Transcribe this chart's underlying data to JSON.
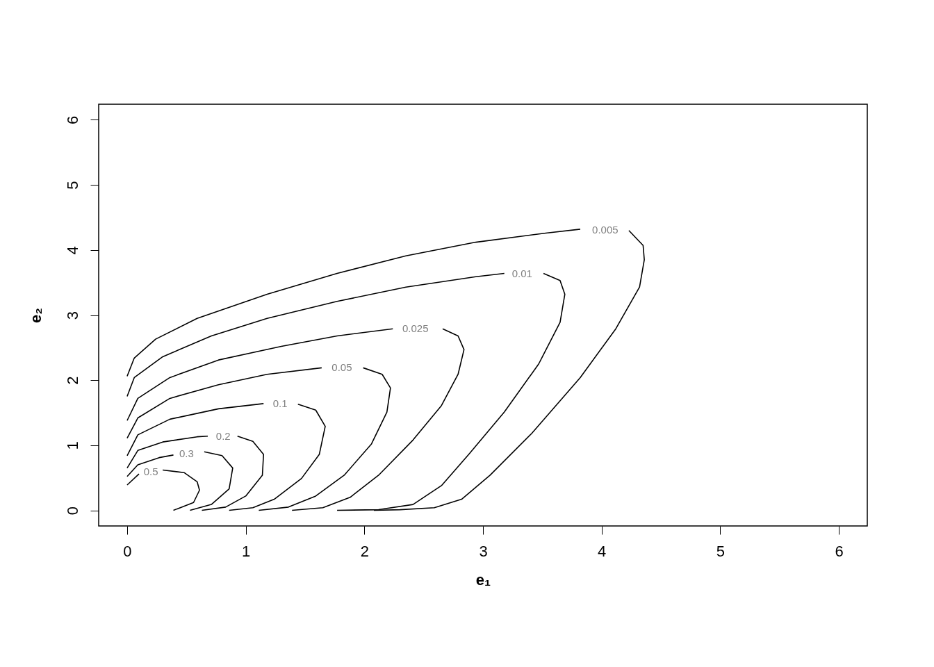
{
  "chart_data": {
    "type": "line",
    "xlabel": "e₁",
    "ylabel": "e₂",
    "xlim": [
      -0.24,
      6.24
    ],
    "ylim": [
      -0.24,
      6.24
    ],
    "xticks": [
      0,
      1,
      2,
      3,
      4,
      5,
      6
    ],
    "yticks": [
      0,
      1,
      2,
      3,
      4,
      5,
      6
    ],
    "grid": false,
    "series": [
      {
        "name": "0.005",
        "color": "#000000",
        "x": [
          0,
          0.06,
          0.24,
          0.59,
          1.18,
          1.77,
          2.35,
          2.94,
          3.53,
          3.82,
          4.03,
          4.23,
          4.35,
          4.36,
          4.32,
          4.12,
          3.82,
          3.41,
          3.06,
          2.82,
          2.59,
          2.3,
          2.08
        ],
        "values": [
          2.06,
          2.34,
          2.63,
          2.95,
          3.32,
          3.64,
          3.91,
          4.12,
          4.26,
          4.32,
          null,
          4.3,
          4.07,
          3.85,
          3.43,
          2.79,
          2.04,
          1.18,
          0.54,
          0.17,
          0.04,
          0.01,
          0
        ]
      },
      {
        "name": "0.01",
        "color": "#000000",
        "x": [
          0,
          0.06,
          0.3,
          0.71,
          1.18,
          1.77,
          2.35,
          2.94,
          3.18,
          3.33,
          3.51,
          3.65,
          3.69,
          3.65,
          3.47,
          3.18,
          2.88,
          2.65,
          2.41,
          2.12,
          1.77
        ],
        "values": [
          1.75,
          2.04,
          2.36,
          2.68,
          2.95,
          3.21,
          3.43,
          3.59,
          3.64,
          null,
          3.64,
          3.53,
          3.32,
          2.89,
          2.25,
          1.51,
          0.86,
          0.38,
          0.09,
          0.01,
          0
        ]
      },
      {
        "name": "0.025",
        "color": "#000000",
        "x": [
          0,
          0.09,
          0.36,
          0.77,
          1.3,
          1.77,
          2.24,
          2.43,
          2.66,
          2.79,
          2.84,
          2.79,
          2.65,
          2.41,
          2.12,
          1.88,
          1.65,
          1.39
        ],
        "values": [
          1.38,
          1.72,
          2.04,
          2.31,
          2.52,
          2.68,
          2.79,
          null,
          2.79,
          2.68,
          2.47,
          2.09,
          1.61,
          1.08,
          0.54,
          0.2,
          0.04,
          0
        ]
      },
      {
        "name": "0.05",
        "color": "#000000",
        "x": [
          0,
          0.09,
          0.36,
          0.77,
          1.18,
          1.64,
          1.81,
          1.99,
          2.15,
          2.22,
          2.19,
          2.06,
          1.83,
          1.59,
          1.36,
          1.11
        ],
        "values": [
          1.11,
          1.42,
          1.72,
          1.93,
          2.09,
          2.19,
          null,
          2.19,
          2.09,
          1.88,
          1.51,
          1.02,
          0.54,
          0.22,
          0.05,
          0
        ]
      },
      {
        "name": "0.1",
        "color": "#000000",
        "x": [
          0,
          0.09,
          0.36,
          0.77,
          1.15,
          1.29,
          1.44,
          1.59,
          1.67,
          1.62,
          1.47,
          1.24,
          1.06,
          0.86
        ],
        "values": [
          0.84,
          1.16,
          1.4,
          1.56,
          1.64,
          null,
          1.63,
          1.54,
          1.29,
          0.86,
          0.49,
          0.17,
          0.04,
          0
        ]
      },
      {
        "name": "0.2",
        "color": "#000000",
        "x": [
          0,
          0.09,
          0.3,
          0.59,
          0.68,
          0.81,
          0.93,
          1.06,
          1.15,
          1.14,
          1.0,
          0.83,
          0.63
        ],
        "values": [
          0.65,
          0.92,
          1.05,
          1.13,
          1.14,
          null,
          1.14,
          1.06,
          0.86,
          0.54,
          0.22,
          0.05,
          0
        ]
      },
      {
        "name": "0.3",
        "color": "#000000",
        "x": [
          0,
          0.09,
          0.27,
          0.39,
          0.5,
          0.65,
          0.8,
          0.89,
          0.86,
          0.71,
          0.53
        ],
        "values": [
          0.52,
          0.7,
          0.81,
          0.85,
          null,
          0.9,
          0.84,
          0.65,
          0.33,
          0.09,
          0
        ]
      },
      {
        "name": "0.5",
        "color": "#000000",
        "x": [
          0,
          0.1,
          0.2,
          0.3,
          0.48,
          0.59,
          0.61,
          0.56,
          0.39
        ],
        "values": [
          0.39,
          0.56,
          null,
          0.62,
          0.58,
          0.44,
          0.31,
          0.12,
          0
        ]
      }
    ]
  }
}
